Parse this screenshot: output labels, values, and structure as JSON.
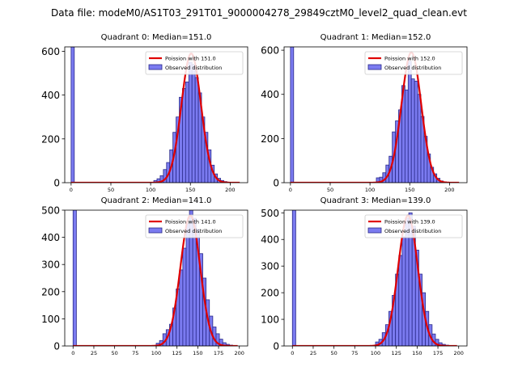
{
  "suptitle": "Data file: modeM0/AS1T03_291T01_9000004278_29849cztM0_level2_quad_clean.evt",
  "colors": {
    "bar_fill": "#7b7bf0",
    "bar_edge": "#2a2a8a",
    "poisson_line": "#e00000"
  },
  "chart_data": [
    {
      "type": "bar",
      "title": "Quadrant 0: Median=151.0",
      "xlim": [
        -8,
        222
      ],
      "ylim": [
        0,
        620
      ],
      "xticks": [
        0,
        50,
        100,
        150,
        200
      ],
      "yticks": [
        0,
        200,
        400,
        600
      ],
      "bin_width": 4,
      "bins": [
        [
          0,
          620
        ],
        [
          104,
          10
        ],
        [
          108,
          18
        ],
        [
          112,
          32
        ],
        [
          116,
          60
        ],
        [
          120,
          92
        ],
        [
          124,
          150
        ],
        [
          128,
          230
        ],
        [
          132,
          300
        ],
        [
          136,
          390
        ],
        [
          140,
          430
        ],
        [
          144,
          460
        ],
        [
          148,
          550
        ],
        [
          152,
          540
        ],
        [
          156,
          480
        ],
        [
          160,
          410
        ],
        [
          164,
          300
        ],
        [
          168,
          230
        ],
        [
          172,
          150
        ],
        [
          176,
          80
        ],
        [
          180,
          40
        ],
        [
          184,
          20
        ],
        [
          188,
          10
        ],
        [
          192,
          5
        ]
      ],
      "poisson_mean": 151.0,
      "poisson_peak": 590,
      "poisson_range": [
        0,
        212
      ],
      "legend": [
        "Poission with 151.0",
        "Observed distribution"
      ]
    },
    {
      "type": "bar",
      "title": "Quadrant 1: Median=152.0",
      "xlim": [
        -8,
        222
      ],
      "ylim": [
        0,
        615
      ],
      "xticks": [
        0,
        50,
        100,
        150,
        200
      ],
      "yticks": [
        0,
        200,
        400,
        600
      ],
      "bin_width": 4,
      "bins": [
        [
          0,
          615
        ],
        [
          108,
          22
        ],
        [
          112,
          25
        ],
        [
          116,
          45
        ],
        [
          120,
          80
        ],
        [
          124,
          120
        ],
        [
          128,
          230
        ],
        [
          132,
          280
        ],
        [
          136,
          330
        ],
        [
          140,
          440
        ],
        [
          144,
          420
        ],
        [
          148,
          550
        ],
        [
          152,
          470
        ],
        [
          156,
          460
        ],
        [
          160,
          400
        ],
        [
          164,
          300
        ],
        [
          168,
          210
        ],
        [
          172,
          130
        ],
        [
          176,
          70
        ],
        [
          180,
          40
        ],
        [
          184,
          20
        ],
        [
          188,
          8
        ],
        [
          192,
          4
        ]
      ],
      "poisson_mean": 152.0,
      "poisson_peak": 590,
      "poisson_range": [
        0,
        212
      ],
      "legend": [
        "Poission with 152.0",
        "Observed distribution"
      ]
    },
    {
      "type": "bar",
      "title": "Quadrant 2: Median=141.0",
      "xlim": [
        -10,
        210
      ],
      "ylim": [
        0,
        500
      ],
      "xticks": [
        0,
        25,
        50,
        75,
        100,
        125,
        150,
        175,
        200
      ],
      "yticks": [
        0,
        100,
        200,
        300,
        400,
        500
      ],
      "bin_width": 4,
      "bins": [
        [
          0,
          500
        ],
        [
          100,
          10
        ],
        [
          104,
          20
        ],
        [
          108,
          45
        ],
        [
          112,
          60
        ],
        [
          116,
          80
        ],
        [
          120,
          140
        ],
        [
          124,
          210
        ],
        [
          128,
          280
        ],
        [
          132,
          360
        ],
        [
          136,
          450
        ],
        [
          140,
          500
        ],
        [
          144,
          470
        ],
        [
          148,
          430
        ],
        [
          152,
          340
        ],
        [
          156,
          250
        ],
        [
          160,
          170
        ],
        [
          164,
          110
        ],
        [
          168,
          70
        ],
        [
          172,
          45
        ],
        [
          176,
          25
        ],
        [
          180,
          12
        ],
        [
          184,
          6
        ],
        [
          188,
          3
        ]
      ],
      "poisson_mean": 141.0,
      "poisson_peak": 480,
      "poisson_range": [
        0,
        198
      ],
      "legend": [
        "Poission with 141.0",
        "Observed distribution"
      ]
    },
    {
      "type": "bar",
      "title": "Quadrant 3: Median=139.0",
      "xlim": [
        -10,
        210
      ],
      "ylim": [
        0,
        510
      ],
      "xticks": [
        0,
        25,
        50,
        75,
        100,
        125,
        150,
        175,
        200
      ],
      "yticks": [
        0,
        100,
        200,
        300,
        400,
        500
      ],
      "bin_width": 4,
      "bins": [
        [
          0,
          510
        ],
        [
          100,
          15
        ],
        [
          104,
          25
        ],
        [
          108,
          50
        ],
        [
          112,
          80
        ],
        [
          116,
          130
        ],
        [
          120,
          190
        ],
        [
          124,
          270
        ],
        [
          128,
          340
        ],
        [
          132,
          410
        ],
        [
          136,
          480
        ],
        [
          140,
          500
        ],
        [
          144,
          450
        ],
        [
          148,
          360
        ],
        [
          152,
          270
        ],
        [
          156,
          200
        ],
        [
          160,
          130
        ],
        [
          164,
          80
        ],
        [
          168,
          45
        ],
        [
          172,
          25
        ],
        [
          176,
          12
        ],
        [
          180,
          6
        ],
        [
          184,
          3
        ]
      ],
      "poisson_mean": 139.0,
      "poisson_peak": 490,
      "poisson_range": [
        0,
        198
      ],
      "legend": [
        "Poission with 139.0",
        "Observed distribution"
      ]
    }
  ]
}
